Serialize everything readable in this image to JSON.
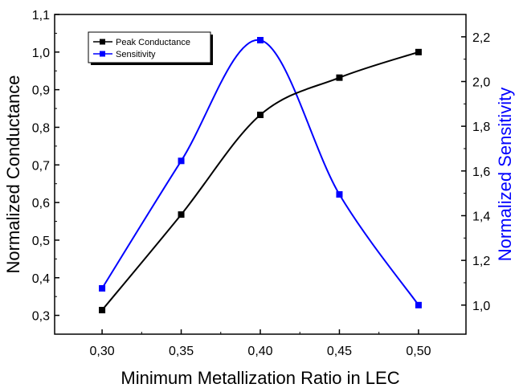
{
  "chart_data": {
    "type": "line",
    "title": "",
    "xlabel": "Minimum Metallization Ratio in LEC",
    "ylabel_left": "Normalized Conductance",
    "ylabel_right": "Normalized Sensitivity",
    "x": [
      0.3,
      0.35,
      0.4,
      0.45,
      0.5
    ],
    "x_tick_labels": [
      "0,30",
      "0,35",
      "0,40",
      "0,45",
      "0,50"
    ],
    "xlim": [
      0.27,
      0.53
    ],
    "ylim_left": [
      0.25,
      1.1
    ],
    "ylim_right": [
      0.87,
      2.3
    ],
    "y_left_ticks": [
      0.3,
      0.4,
      0.5,
      0.6,
      0.7,
      0.8,
      0.9,
      1.0,
      1.1
    ],
    "y_left_tick_labels": [
      "0,3",
      "0,4",
      "0,5",
      "0,6",
      "0,7",
      "0,8",
      "0,9",
      "1,0",
      "1,1"
    ],
    "y_right_ticks": [
      1.0,
      1.2,
      1.4,
      1.6,
      1.8,
      2.0,
      2.2
    ],
    "y_right_tick_labels": [
      "1,0",
      "1,2",
      "1,4",
      "1,6",
      "1,8",
      "2,0",
      "2,2"
    ],
    "grid": false,
    "legend_position": "top-left",
    "series": [
      {
        "name": "Peak Conductance",
        "axis": "left",
        "color": "#000000",
        "values": [
          0.314,
          0.568,
          0.833,
          0.932,
          1.0
        ]
      },
      {
        "name": "Sensitivity",
        "axis": "right",
        "color": "#0000ff",
        "values": [
          1.075,
          1.645,
          2.185,
          1.495,
          1.0
        ]
      }
    ],
    "colors": {
      "ylabel_right": "#0000ff",
      "axes": "#000000"
    }
  }
}
